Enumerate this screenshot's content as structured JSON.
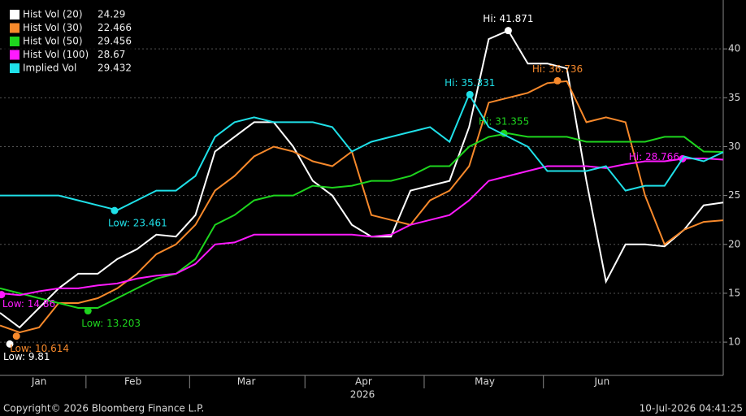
{
  "chart_data": {
    "type": "line",
    "x_label": "2026",
    "footer_left": "Copyright© 2026 Bloomberg Finance L.P.",
    "footer_right": "10-Jul-2026 04:41:25",
    "xlim": [
      11,
      196
    ],
    "xticks": [
      {
        "value": 21,
        "label": "Jan"
      },
      {
        "value": 45,
        "label": "Feb"
      },
      {
        "value": 74,
        "label": "Mar"
      },
      {
        "value": 104,
        "label": "Apr"
      },
      {
        "value": 135,
        "label": "May"
      },
      {
        "value": 165,
        "label": "Jun"
      }
    ],
    "ylim": [
      6.6,
      45
    ],
    "yticks": [
      10,
      15,
      20,
      25,
      30,
      35,
      40
    ],
    "grid": true,
    "legend": "upper-left",
    "x": [
      11,
      16,
      21,
      26,
      31,
      36,
      41,
      46,
      51,
      56,
      61,
      66,
      71,
      76,
      81,
      86,
      91,
      96,
      101,
      106,
      111,
      116,
      121,
      126,
      131,
      136,
      141,
      146,
      151,
      156,
      161,
      166,
      171,
      176,
      181,
      186,
      191,
      196
    ],
    "series": [
      {
        "name": "Hist Vol (20)",
        "last": "24.29",
        "color": "#ffffff",
        "values": [
          13.0,
          11.5,
          13.5,
          15.5,
          17.0,
          17.0,
          18.5,
          19.5,
          21.0,
          20.8,
          23.0,
          29.5,
          31.0,
          32.5,
          32.5,
          30.0,
          26.5,
          25.0,
          22.0,
          20.8,
          20.8,
          25.5,
          26.0,
          26.5,
          32.0,
          41.0,
          41.871,
          38.5,
          38.5,
          38.0,
          26.5,
          16.2,
          20.0,
          20.0,
          19.8,
          21.5,
          24.0,
          24.29
        ],
        "markers": [
          {
            "text": "Low: 9.81",
            "x": 13.5,
            "y": 9.81,
            "kind": "low"
          },
          {
            "text": "Hi: 41.871",
            "x": 141,
            "y": 41.871,
            "kind": "hi"
          }
        ]
      },
      {
        "name": "Hist Vol (30)",
        "last": "22.466",
        "color": "#f7892b",
        "values": [
          11.7,
          11.0,
          11.5,
          14.0,
          14.0,
          14.5,
          15.5,
          17.0,
          19.0,
          20.0,
          22.0,
          25.5,
          27.0,
          29.0,
          30.0,
          29.5,
          28.5,
          28.0,
          29.5,
          23.0,
          22.5,
          22.0,
          24.5,
          25.5,
          28.0,
          34.5,
          35.0,
          35.5,
          36.5,
          36.7,
          32.5,
          33.0,
          32.5,
          25.0,
          20.0,
          21.5,
          22.3,
          22.466
        ],
        "markers": [
          {
            "text": "Low: 10.614",
            "x": 15.2,
            "y": 10.614,
            "kind": "low"
          },
          {
            "text": "Hi: 36.736",
            "x": 153.6,
            "y": 36.736,
            "kind": "hi"
          }
        ]
      },
      {
        "name": "Hist Vol (50)",
        "last": "29.456",
        "color": "#1ed51e",
        "values": [
          15.5,
          15.0,
          14.5,
          14.0,
          13.5,
          13.5,
          14.5,
          15.5,
          16.5,
          17.0,
          18.5,
          22.0,
          23.0,
          24.5,
          25.0,
          25.0,
          26.0,
          25.8,
          26.0,
          26.5,
          26.5,
          27.0,
          28.0,
          28.0,
          30.0,
          31.0,
          31.355,
          31.0,
          31.0,
          31.0,
          30.5,
          30.5,
          30.5,
          30.5,
          31.0,
          31.0,
          29.5,
          29.456
        ],
        "markers": [
          {
            "text": "Low: 13.203",
            "x": 33.5,
            "y": 13.203,
            "kind": "low"
          },
          {
            "text": "Hi: 31.355",
            "x": 139.9,
            "y": 31.355,
            "kind": "hi"
          }
        ]
      },
      {
        "name": "Hist Vol (100)",
        "last": "28.67",
        "color": "#ff1aff",
        "values": [
          15.0,
          14.8,
          15.2,
          15.5,
          15.5,
          15.8,
          16.0,
          16.5,
          16.8,
          17.0,
          18.0,
          20.0,
          20.2,
          21.0,
          21.0,
          21.0,
          21.0,
          21.0,
          21.0,
          20.8,
          21.0,
          22.0,
          22.5,
          23.0,
          24.5,
          26.5,
          27.0,
          27.5,
          28.0,
          28.0,
          28.0,
          27.8,
          28.2,
          28.5,
          28.5,
          28.766,
          28.8,
          28.67
        ],
        "markers": [
          {
            "text": "Low: 14.86",
            "x": 11.4,
            "y": 14.86,
            "kind": "low-side"
          },
          {
            "text": "Hi: 28.766",
            "x": 185.6,
            "y": 28.766,
            "kind": "hi-side"
          }
        ]
      },
      {
        "name": "Implied Vol",
        "last": "29.432",
        "color": "#1fe0e8",
        "values": [
          25.0,
          25.0,
          25.0,
          25.0,
          24.5,
          24.0,
          23.5,
          24.5,
          25.5,
          25.5,
          27.0,
          31.0,
          32.5,
          33.0,
          32.5,
          32.5,
          32.5,
          32.0,
          29.5,
          30.5,
          31.0,
          31.5,
          32.0,
          30.5,
          35.331,
          32.0,
          31.0,
          30.0,
          27.5,
          27.5,
          27.5,
          28.0,
          25.5,
          26.0,
          26.0,
          29.0,
          28.5,
          29.432
        ],
        "markers": [
          {
            "text": "Low: 23.461",
            "x": 40.3,
            "y": 23.461,
            "kind": "low"
          },
          {
            "text": "Hi: 35.331",
            "x": 131.2,
            "y": 35.331,
            "kind": "hi"
          }
        ]
      }
    ]
  }
}
